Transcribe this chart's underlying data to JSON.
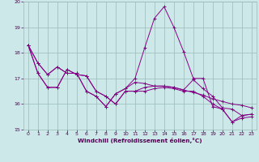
{
  "title": "",
  "xlabel": "Windchill (Refroidissement éolien,°C)",
  "bg_color": "#cce8e8",
  "grid_color": "#99bbbb",
  "line_color": "#880088",
  "xlim": [
    -0.5,
    23.5
  ],
  "ylim": [
    15,
    20
  ],
  "yticks": [
    15,
    16,
    17,
    18,
    19,
    20
  ],
  "xticks": [
    0,
    1,
    2,
    3,
    4,
    5,
    6,
    7,
    8,
    9,
    10,
    11,
    12,
    13,
    14,
    15,
    16,
    17,
    18,
    19,
    20,
    21,
    22,
    23
  ],
  "series": [
    [
      18.3,
      17.6,
      17.15,
      17.45,
      17.2,
      17.2,
      16.5,
      16.3,
      15.9,
      16.4,
      16.6,
      17.0,
      18.2,
      19.35,
      19.8,
      19.0,
      18.05,
      17.0,
      17.0,
      15.9,
      15.8,
      15.3,
      15.55,
      15.6
    ],
    [
      18.3,
      17.2,
      16.65,
      16.65,
      17.35,
      17.15,
      17.1,
      16.5,
      16.3,
      16.0,
      16.5,
      16.5,
      16.5,
      16.6,
      16.65,
      16.6,
      16.5,
      16.5,
      16.3,
      16.0,
      15.8,
      15.3,
      15.45,
      15.5
    ],
    [
      18.3,
      17.2,
      16.65,
      16.65,
      17.35,
      17.15,
      17.1,
      16.5,
      16.3,
      16.0,
      16.5,
      16.5,
      16.65,
      16.7,
      16.7,
      16.65,
      16.55,
      16.95,
      16.6,
      16.3,
      15.85,
      15.8,
      15.55,
      15.6
    ],
    [
      18.3,
      17.6,
      17.15,
      17.45,
      17.2,
      17.2,
      16.5,
      16.3,
      15.9,
      16.4,
      16.6,
      16.85,
      16.8,
      16.7,
      16.7,
      16.65,
      16.55,
      16.45,
      16.35,
      16.2,
      16.1,
      16.0,
      15.95,
      15.85
    ]
  ]
}
